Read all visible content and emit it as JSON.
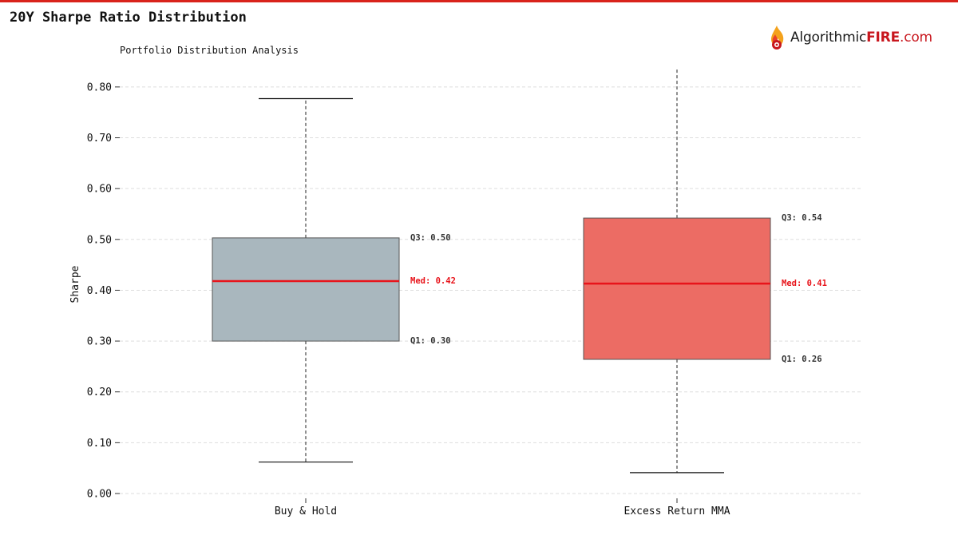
{
  "colors": {
    "accent": "#d9231b",
    "median": "#e8141b",
    "box_buy_hold": "#a9b7be",
    "box_excess": "#ec6c64",
    "grid": "#dddddd"
  },
  "header": {
    "title": "20Y Sharpe Ratio Distribution"
  },
  "logo": {
    "icon": "flame-icon",
    "text_a": "Algorithmic",
    "text_b": "FIRE",
    "text_c": ".com"
  },
  "chart_data": {
    "type": "box",
    "subtitle": "Portfolio Distribution Analysis",
    "ylabel": "Sharpe",
    "xlabel": "",
    "ylim": [
      -0.01,
      0.84
    ],
    "yticks": [
      0.0,
      0.1,
      0.2,
      0.3,
      0.4,
      0.5,
      0.6,
      0.7,
      0.8
    ],
    "ytick_labels": [
      "0.00",
      "0.10",
      "0.20",
      "0.30",
      "0.40",
      "0.50",
      "0.60",
      "0.70",
      "0.80"
    ],
    "grid": true,
    "categories": [
      "Buy & Hold",
      "Excess Return MMA"
    ],
    "boxes": [
      {
        "name": "Buy & Hold",
        "whisker_low": 0.062,
        "q1": 0.3,
        "median": 0.418,
        "q3": 0.503,
        "whisker_high": 0.777,
        "q1_label": "Q1: 0.30",
        "median_label": "Med: 0.42",
        "q3_label": "Q3: 0.50"
      },
      {
        "name": "Excess Return MMA",
        "whisker_low": 0.041,
        "q1": 0.264,
        "median": 0.413,
        "q3": 0.542,
        "whisker_high": 0.84,
        "q1_label": "Q1: 0.26",
        "median_label": "Med: 0.41",
        "q3_label": "Q3: 0.54"
      }
    ]
  }
}
